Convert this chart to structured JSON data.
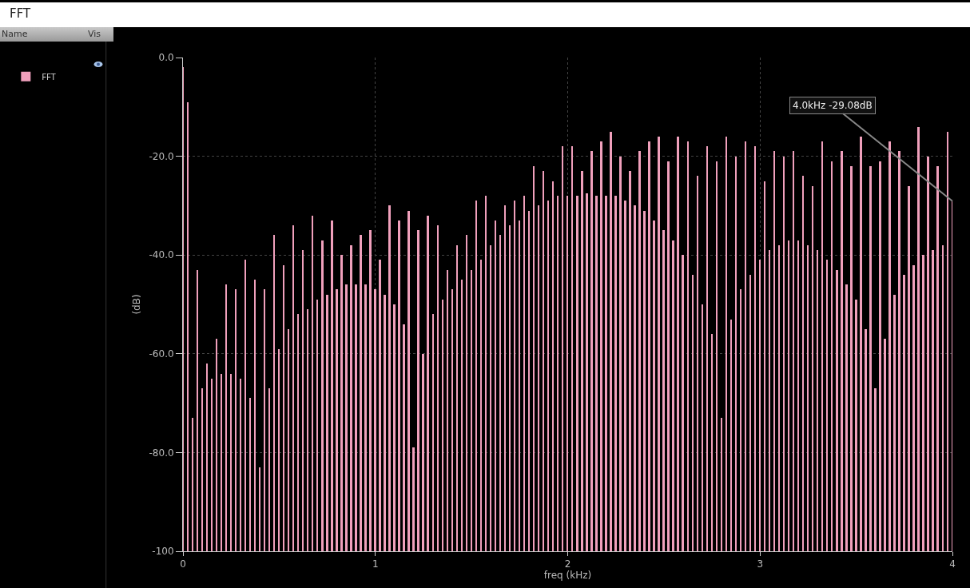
{
  "chart_data": {
    "type": "bar",
    "title": "FFT",
    "xlabel": "freq (kHz)",
    "ylabel": "(dB)",
    "legend": "top left",
    "grid": true,
    "annotations": [
      "Name",
      "Vis",
      {
        "text": "4.0kHz -29.08dB",
        "x": 4,
        "y": -29.08
      }
    ],
    "xlim": [
      0,
      4
    ],
    "xticks": [
      0,
      1,
      2,
      3,
      4
    ],
    "ylim": [
      -100,
      0
    ],
    "yticks": [
      {
        "value": 0,
        "label": "0.0"
      },
      {
        "value": -20,
        "label": "-20.0"
      },
      {
        "value": -40,
        "label": "-40.0"
      },
      {
        "value": -60,
        "label": "-60.0"
      },
      {
        "value": -80,
        "label": "-80.0"
      },
      {
        "value": -100,
        "label": "-100"
      }
    ],
    "x": [
      0,
      0.025,
      0.05,
      0.075,
      0.1,
      0.125,
      0.15,
      0.175,
      0.2,
      0.225,
      0.25,
      0.275,
      0.3,
      0.325,
      0.35,
      0.375,
      0.4,
      0.425,
      0.45,
      0.475,
      0.5,
      0.525,
      0.55,
      0.575,
      0.6,
      0.625,
      0.65,
      0.675,
      0.7,
      0.725,
      0.75,
      0.775,
      0.8,
      0.825,
      0.85,
      0.875,
      0.9,
      0.925,
      0.95,
      0.975,
      1,
      1.025,
      1.05,
      1.075,
      1.1,
      1.125,
      1.15,
      1.175,
      1.2,
      1.225,
      1.25,
      1.275,
      1.3,
      1.325,
      1.35,
      1.375,
      1.4,
      1.425,
      1.45,
      1.475,
      1.5,
      1.525,
      1.55,
      1.575,
      1.6,
      1.625,
      1.65,
      1.675,
      1.7,
      1.725,
      1.75,
      1.775,
      1.8,
      1.825,
      1.85,
      1.875,
      1.9,
      1.925,
      1.95,
      1.975,
      2,
      2.025,
      2.05,
      2.075,
      2.1,
      2.125,
      2.15,
      2.175,
      2.2,
      2.225,
      2.25,
      2.275,
      2.3,
      2.325,
      2.35,
      2.375,
      2.4,
      2.425,
      2.45,
      2.475,
      2.5,
      2.525,
      2.55,
      2.575,
      2.6,
      2.625,
      2.65,
      2.675,
      2.7,
      2.725,
      2.75,
      2.775,
      2.8,
      2.825,
      2.85,
      2.875,
      2.9,
      2.925,
      2.95,
      2.975,
      3,
      3.025,
      3.05,
      3.075,
      3.1,
      3.125,
      3.15,
      3.175,
      3.2,
      3.225,
      3.25,
      3.275,
      3.3,
      3.325,
      3.35,
      3.375,
      3.4,
      3.425,
      3.45,
      3.475,
      3.5,
      3.525,
      3.55,
      3.575,
      3.6,
      3.625,
      3.65,
      3.675,
      3.7,
      3.725,
      3.75,
      3.775,
      3.8,
      3.825,
      3.85,
      3.875,
      3.9,
      3.925,
      3.95,
      3.975,
      4
    ],
    "series": [
      {
        "name": "FFT",
        "color": "#f0a0bc",
        "base": [
          -100,
          -100,
          -100,
          -100,
          -100,
          -100,
          -100,
          -100,
          -100,
          -100,
          -100,
          -100,
          -100,
          -100,
          -100,
          -100,
          -100,
          -100,
          -100,
          -100,
          -100,
          -100,
          -100,
          -100,
          -100,
          -100,
          -100,
          -100,
          -100,
          -100,
          -100,
          -100,
          -100,
          -100,
          -100,
          -100,
          -100,
          -100,
          -100,
          -100,
          -100,
          -100,
          -100,
          -100,
          -100,
          -100,
          -100,
          -100,
          -100,
          -100,
          -100,
          -100,
          -100,
          -100,
          -100,
          -100,
          -100,
          -100,
          -100,
          -100,
          -100,
          -100,
          -100,
          -100,
          -100,
          -100,
          -100,
          -100,
          -100,
          -100,
          -100,
          -100,
          -100,
          -100,
          -100,
          -100,
          -100,
          -100,
          -100,
          -100,
          -100,
          -100,
          -100,
          -100,
          -100,
          -100,
          -100,
          -100,
          -100,
          -100,
          -100,
          -100,
          -100,
          -100,
          -100,
          -100,
          -100,
          -100,
          -100,
          -100,
          -100,
          -100,
          -100,
          -100,
          -100,
          -100,
          -100,
          -100,
          -100,
          -100,
          -100,
          -100,
          -100,
          -100,
          -100,
          -100,
          -100,
          -100,
          -100,
          -100,
          -100,
          -100,
          -100,
          -100,
          -100,
          -100,
          -100,
          -100,
          -100,
          -100,
          -100,
          -100,
          -100,
          -100,
          -100,
          -100,
          -100,
          -100,
          -100,
          -100,
          -100,
          -100,
          -100,
          -100,
          -100,
          -100,
          -100,
          -100,
          -100,
          -100,
          -100,
          -100,
          -100,
          -100,
          -100,
          -100,
          -100,
          -100,
          -100,
          -100,
          -100
        ],
        "values": [
          98,
          91,
          27,
          57,
          33,
          38,
          35,
          43,
          36,
          54,
          36,
          53,
          35,
          59,
          31,
          55,
          17,
          53,
          33,
          64,
          41,
          58,
          45,
          66,
          48,
          61,
          49,
          68,
          51,
          63,
          52,
          67,
          53,
          60,
          54,
          62,
          54,
          64,
          54,
          65,
          53,
          59,
          52,
          70,
          50,
          67,
          46,
          69,
          21,
          65,
          40,
          68,
          48,
          66,
          51,
          57,
          53,
          62,
          55,
          64,
          57,
          71,
          59,
          72,
          62,
          67,
          64,
          70,
          66,
          71,
          67,
          72,
          69,
          78,
          70,
          77,
          71,
          75,
          72,
          82,
          72,
          82,
          72,
          77,
          72.5,
          81,
          72,
          83,
          72,
          85,
          72,
          80,
          71,
          77,
          70,
          81,
          69,
          83,
          67,
          84,
          65,
          79,
          63,
          84,
          60,
          83,
          56,
          76,
          50,
          82,
          44,
          79,
          27,
          84,
          47,
          80,
          53,
          83,
          56,
          82,
          59,
          75,
          61,
          81,
          62,
          80,
          63,
          81,
          63,
          76,
          62,
          74,
          61,
          83,
          59,
          79,
          57,
          81,
          54,
          78,
          51,
          84,
          45,
          78,
          33,
          79,
          43,
          83,
          52,
          81,
          56,
          74,
          58,
          86,
          60,
          80,
          61,
          78,
          62,
          85,
          70.9
        ]
      }
    ]
  }
}
